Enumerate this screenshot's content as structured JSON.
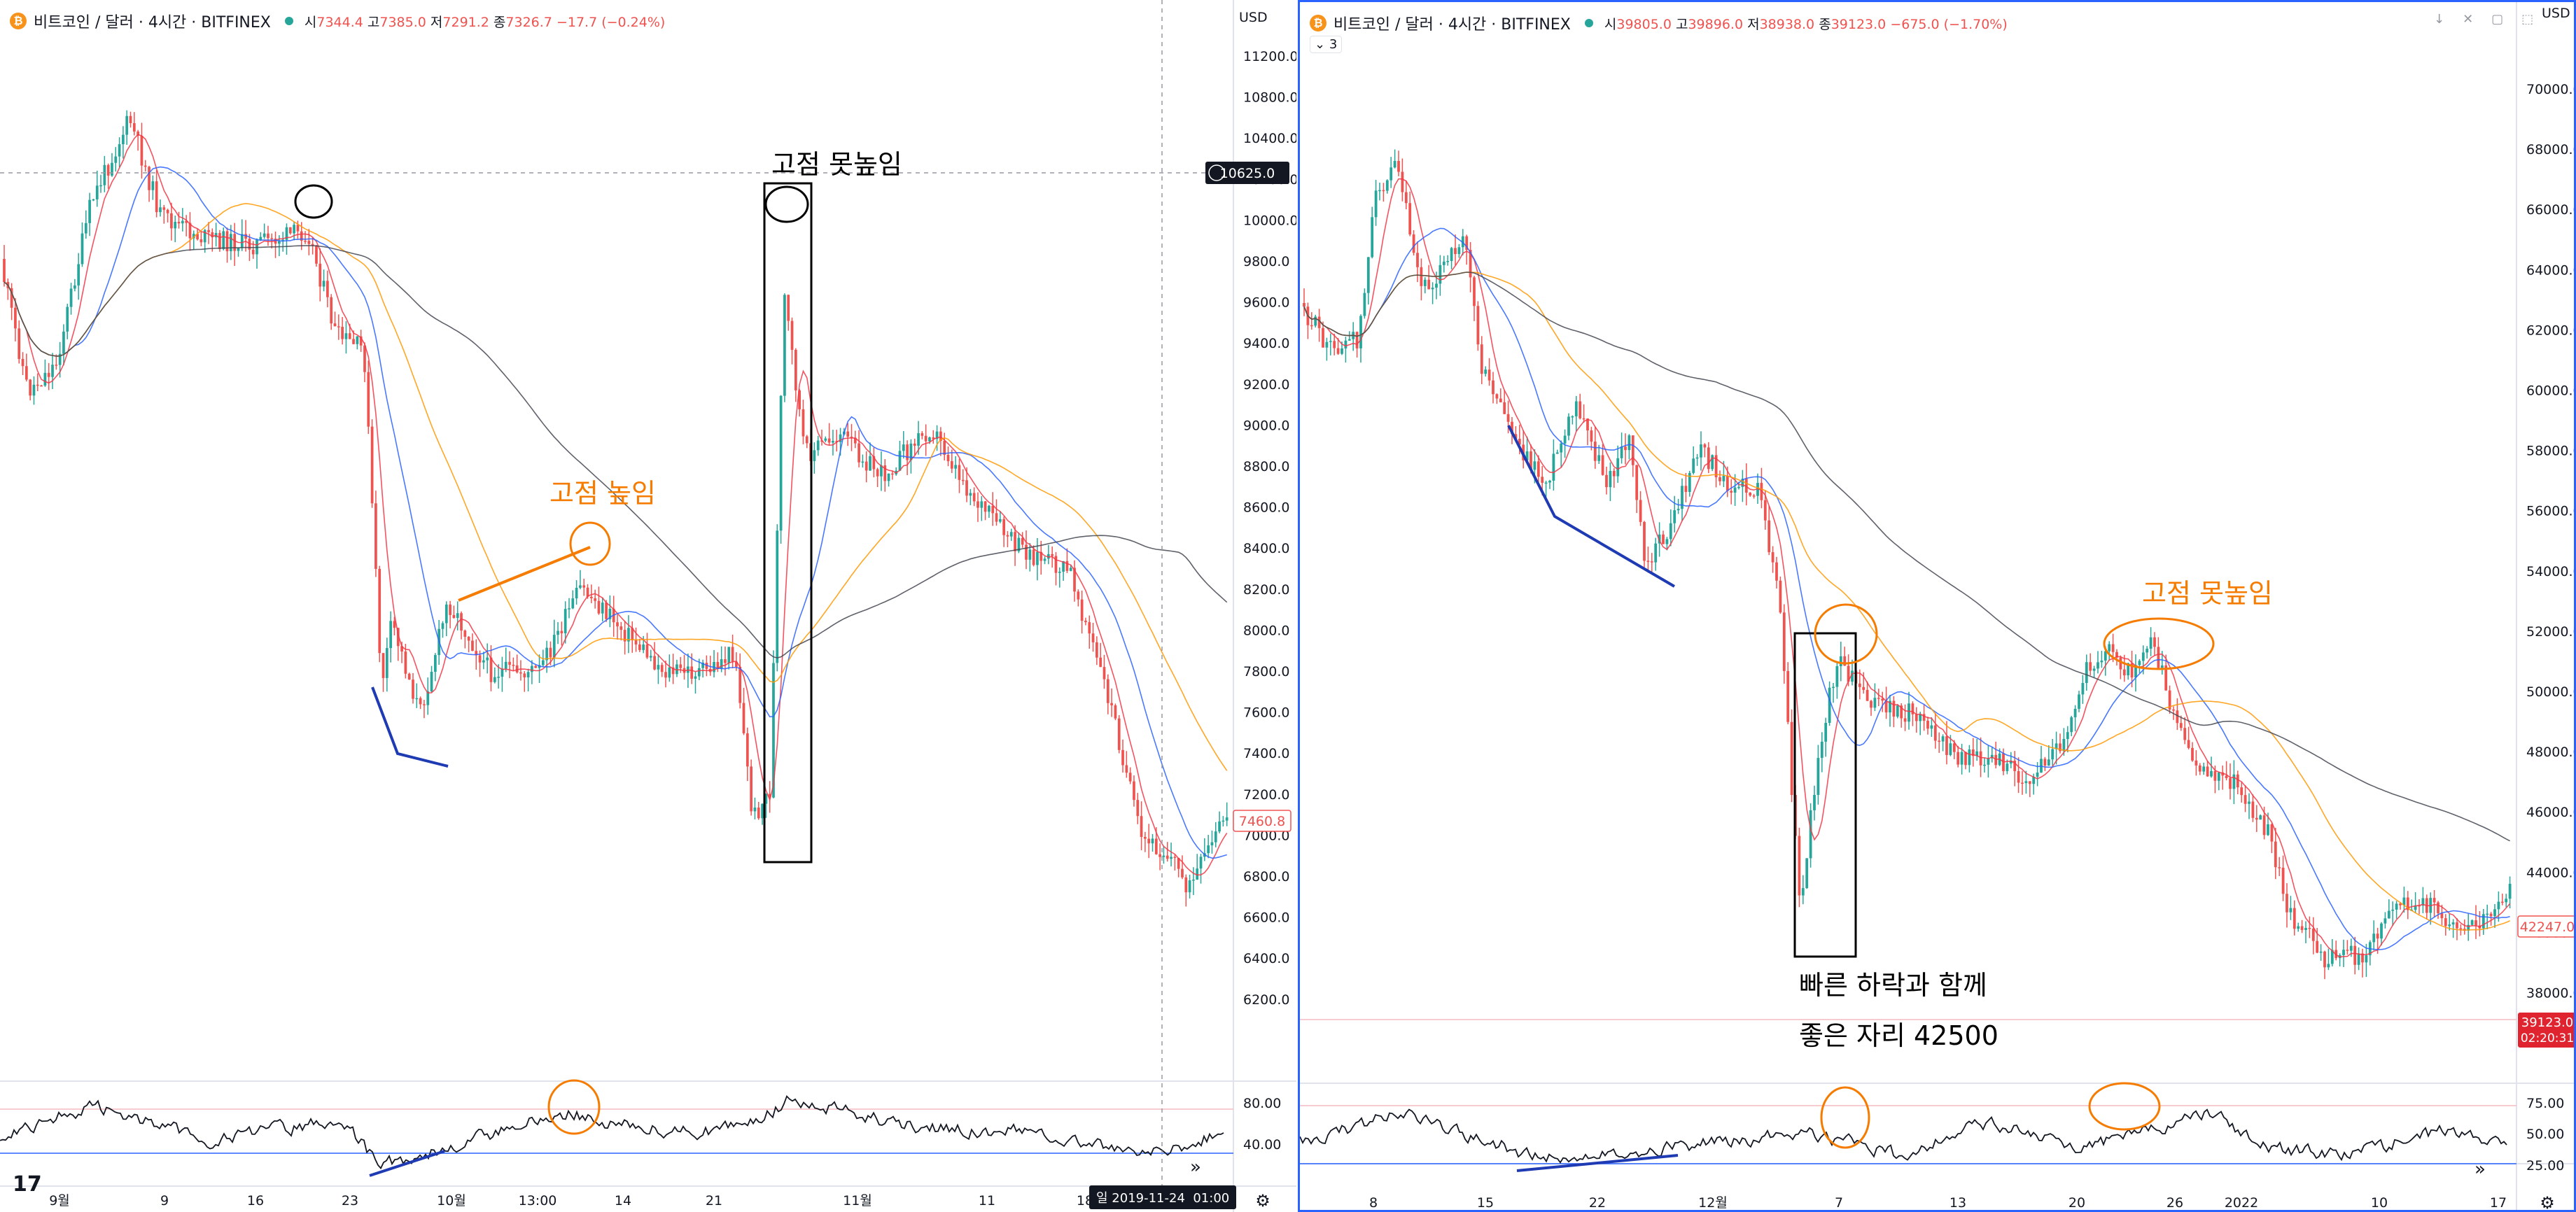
{
  "left": {
    "legend": {
      "symbol": "비트코인 / 달러 · 4시간 · BITFINEX",
      "o": "시",
      "o_val": "7344.4",
      "h": "고",
      "h_val": "7385.0",
      "l": "저",
      "l_val": "7291.2",
      "c": "종",
      "c_val": "7326.7",
      "chg": "−17.7 (−0.24%)"
    },
    "currency": "USD",
    "y_ticks": [
      "11200.0",
      "10800.0",
      "10400.0",
      "10200.0",
      "10000.0",
      "9800.0",
      "9600.0",
      "9400.0",
      "9200.0",
      "9000.0",
      "8800.0",
      "8600.0",
      "8400.0",
      "8200.0",
      "8000.0",
      "7800.0",
      "7600.0",
      "7400.0",
      "7200.0",
      "7000.0",
      "6800.0",
      "6600.0",
      "6400.0",
      "6200.0"
    ],
    "crosshair_price": "10625.0",
    "last_price": "7460.8",
    "x_ticks": [
      "9월",
      "9",
      "16",
      "23",
      "10월",
      "13:00",
      "14",
      "21",
      "11월",
      "11",
      "18"
    ],
    "crosshair_date": "2019-11-24",
    "crosshair_time": "01:00",
    "crosshair_day": "일",
    "rsi_ticks": [
      "80.00",
      "40.00"
    ],
    "annotations": {
      "text1": "고점 높임",
      "text2": "고점 못높임"
    }
  },
  "right": {
    "legend": {
      "symbol": "비트코인 / 달러 · 4시간 · BITFINEX",
      "o": "시",
      "o_val": "39805.0",
      "h": "고",
      "h_val": "39896.0",
      "l": "저",
      "l_val": "38938.0",
      "c": "종",
      "c_val": "39123.0",
      "chg": "−675.0 (−1.70%)"
    },
    "indicator_count": "3",
    "currency": "USD",
    "y_ticks": [
      "70000.0",
      "68000.0",
      "66000.0",
      "64000.0",
      "62000.0",
      "60000.0",
      "58000.0",
      "56000.0",
      "54000.0",
      "52000.0",
      "50000.0",
      "48000.0",
      "46000.0",
      "44000.0",
      "40000.0",
      "38000.0"
    ],
    "last_price": "42247.0",
    "live_price": "39123.0",
    "live_timer": "02:20:31",
    "x_ticks": [
      "8",
      "15",
      "22",
      "12월",
      "7",
      "13",
      "20",
      "26",
      "2022",
      "10",
      "17"
    ],
    "rsi_ticks": [
      "75.00",
      "50.00",
      "25.00"
    ],
    "annotations": {
      "text1": "고점 못높임",
      "text2": "빠른 하락과 함께",
      "text3": "좋은 자리 42500"
    }
  },
  "logo": "17",
  "icons": [
    "bitcoin-icon",
    "status-dot-icon",
    "settings-icon",
    "scroll-right-icon",
    "plus-icon",
    "chevron-down-icon",
    "window-controls-icon"
  ]
}
